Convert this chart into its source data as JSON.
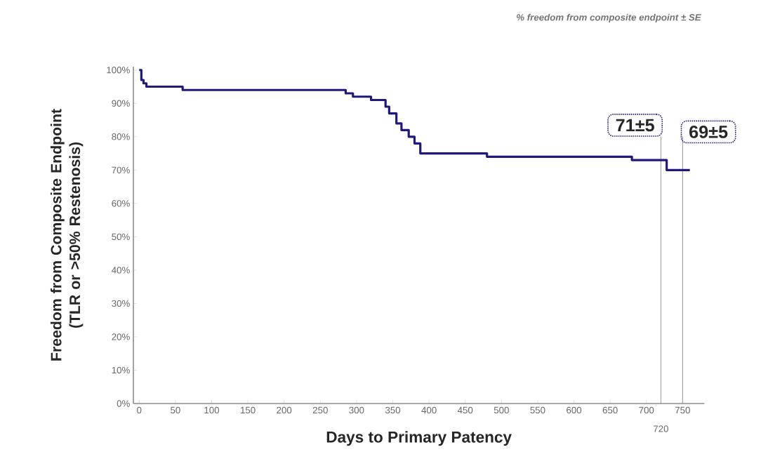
{
  "chart_data": {
    "type": "step",
    "subtitle": "% freedom from composite endpoint ± SE",
    "xlabel": "Days to Primary Patency",
    "ylabel": "Freedom from Composite Endpoint (TLR or >50% Restenosis)",
    "x": [
      0,
      3,
      6,
      10,
      60,
      285,
      295,
      320,
      340,
      345,
      355,
      362,
      372,
      380,
      388,
      480,
      680,
      728,
      760
    ],
    "series": [
      {
        "color": "#1f1a7a",
        "values": [
          100,
          97,
          96,
          95,
          94,
          93,
          92,
          91,
          89,
          87,
          84,
          82,
          80,
          78,
          75,
          74,
          73,
          70,
          70
        ]
      }
    ],
    "xlim": [
      -8,
      780
    ],
    "ylim": [
      0,
      101
    ],
    "xticks": [
      0,
      50,
      100,
      150,
      200,
      250,
      300,
      350,
      400,
      450,
      500,
      550,
      600,
      650,
      700,
      750
    ],
    "yticks": [
      {
        "value": 0,
        "label": "0%"
      },
      {
        "value": 10,
        "label": "10%"
      },
      {
        "value": 20,
        "label": "20%"
      },
      {
        "value": 30,
        "label": "30%"
      },
      {
        "value": 40,
        "label": "40%"
      },
      {
        "value": 50,
        "label": "50%"
      },
      {
        "value": 60,
        "label": "60%"
      },
      {
        "value": 70,
        "label": "70%"
      },
      {
        "value": 80,
        "label": "80%"
      },
      {
        "value": 90,
        "label": "90%"
      },
      {
        "value": 100,
        "label": "100%"
      }
    ],
    "ref_lines": [
      {
        "axis": "x",
        "value": 720,
        "label": "720",
        "color": "#9a9a9a"
      },
      {
        "axis": "x",
        "value": 750,
        "color": "#9a9a9a"
      }
    ],
    "annotations": [
      "71±5",
      "69±5"
    ],
    "grid": false,
    "marker": "none",
    "line_style": "solid"
  }
}
